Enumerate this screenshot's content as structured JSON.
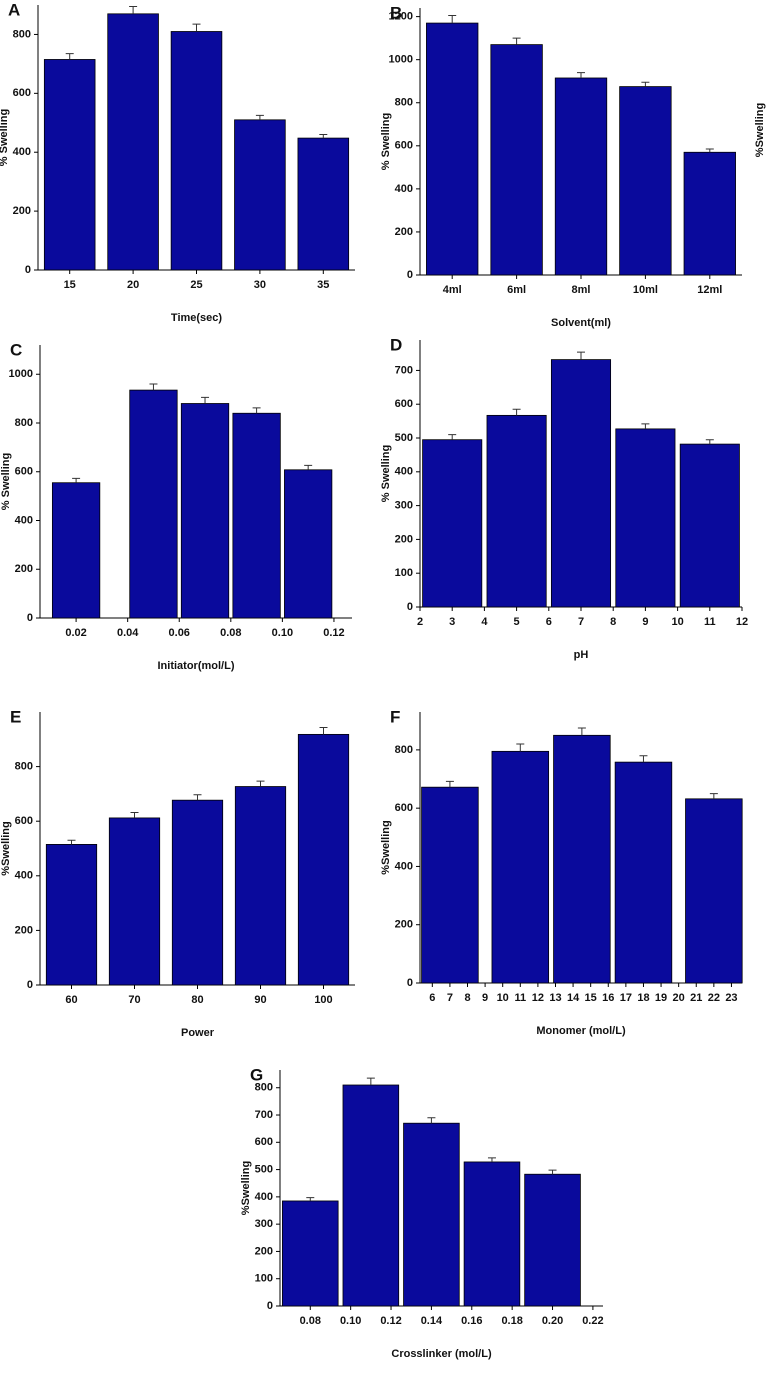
{
  "chart_data": [
    {
      "type": "bar",
      "label": "A",
      "xlabel": "Time(sec)",
      "ylabel": "% Swelling",
      "categories": [
        "15",
        "20",
        "25",
        "30",
        "35"
      ],
      "values": [
        715,
        870,
        810,
        510,
        448
      ],
      "errors": [
        20,
        25,
        25,
        15,
        12
      ],
      "ylim": [
        0,
        900
      ],
      "yticks": [
        0,
        200,
        400,
        600,
        800
      ],
      "color": "#0a0a9c"
    },
    {
      "type": "bar",
      "label": "B",
      "xlabel": "Solvent(ml)",
      "ylabel": "% Swelling",
      "categories": [
        "4ml",
        "6ml",
        "8ml",
        "10ml",
        "12ml"
      ],
      "values": [
        1170,
        1070,
        915,
        875,
        570
      ],
      "errors": [
        35,
        30,
        25,
        20,
        15
      ],
      "ylim": [
        0,
        1240
      ],
      "yticks": [
        0,
        200,
        400,
        600,
        800,
        1000,
        1200
      ],
      "color": "#0a0a9c"
    },
    {
      "type": "bar",
      "label": "C",
      "xlabel": "Initiator(mol/L)",
      "ylabel": "% Swelling",
      "x": [
        0.02,
        0.05,
        0.07,
        0.09,
        0.11
      ],
      "values": [
        555,
        935,
        880,
        840,
        608
      ],
      "errors": [
        18,
        25,
        25,
        22,
        18
      ],
      "xlim": [
        0.006,
        0.127
      ],
      "xticks": [
        0.02,
        0.04,
        0.06,
        0.08,
        {
          "value": 0.1,
          "label": "0.10"
        },
        0.12
      ],
      "ylim": [
        0,
        1120
      ],
      "yticks": [
        0,
        200,
        400,
        600,
        800,
        1000
      ],
      "color": "#0a0a9c"
    },
    {
      "type": "bar",
      "label": "D",
      "xlabel": "pH",
      "ylabel": "% Swelling",
      "x": [
        3,
        5,
        7,
        9,
        11
      ],
      "values": [
        495,
        567,
        732,
        527,
        482
      ],
      "errors": [
        15,
        18,
        22,
        15,
        13
      ],
      "xlim": [
        2,
        12
      ],
      "xticks": [
        2,
        3,
        4,
        5,
        6,
        7,
        8,
        9,
        10,
        11,
        12
      ],
      "ylim": [
        0,
        790
      ],
      "yticks": [
        0,
        100,
        200,
        300,
        400,
        500,
        600,
        700
      ],
      "color": "#0a0a9c"
    },
    {
      "type": "bar",
      "label": "E",
      "xlabel": "Power",
      "ylabel": "%Swelling",
      "categories": [
        "60",
        "70",
        "80",
        "90",
        "100"
      ],
      "values": [
        515,
        612,
        677,
        727,
        918
      ],
      "errors": [
        15,
        20,
        20,
        20,
        25
      ],
      "ylim": [
        0,
        1000
      ],
      "yticks": [
        0,
        200,
        400,
        600,
        800
      ],
      "color": "#0a0a9c"
    },
    {
      "type": "bar",
      "label": "F",
      "xlabel": "Monomer (mol/L)",
      "ylabel": "%Swelling",
      "x": [
        7,
        11,
        14.5,
        18,
        22
      ],
      "values": [
        672,
        795,
        850,
        758,
        632
      ],
      "errors": [
        20,
        25,
        25,
        22,
        18
      ],
      "xlim": [
        5.3,
        23.6
      ],
      "xticks": [
        6,
        7,
        8,
        9,
        10,
        11,
        12,
        13,
        14,
        15,
        16,
        17,
        18,
        19,
        20,
        21,
        22,
        23
      ],
      "ylim": [
        0,
        930
      ],
      "yticks": [
        0,
        200,
        400,
        600,
        800
      ],
      "color": "#0a0a9c"
    },
    {
      "type": "bar",
      "label": "G",
      "xlabel": "Crosslinker (mol/L)",
      "ylabel": "%Swelling",
      "x": [
        0.08,
        0.11,
        0.14,
        0.17,
        0.2
      ],
      "values": [
        385,
        810,
        670,
        528,
        483
      ],
      "errors": [
        12,
        25,
        20,
        15,
        15
      ],
      "xlim": [
        0.065,
        0.225
      ],
      "xticks": [
        0.08,
        {
          "value": 0.1,
          "label": "0.10"
        },
        0.12,
        0.14,
        0.16,
        0.18,
        {
          "value": 0.2,
          "label": "0.20"
        },
        0.22
      ],
      "ylim": [
        0,
        865
      ],
      "yticks": [
        0,
        100,
        200,
        300,
        400,
        500,
        600,
        700,
        800
      ],
      "color": "#0a0a9c"
    }
  ],
  "cropped_axis_label": "%Swelling"
}
